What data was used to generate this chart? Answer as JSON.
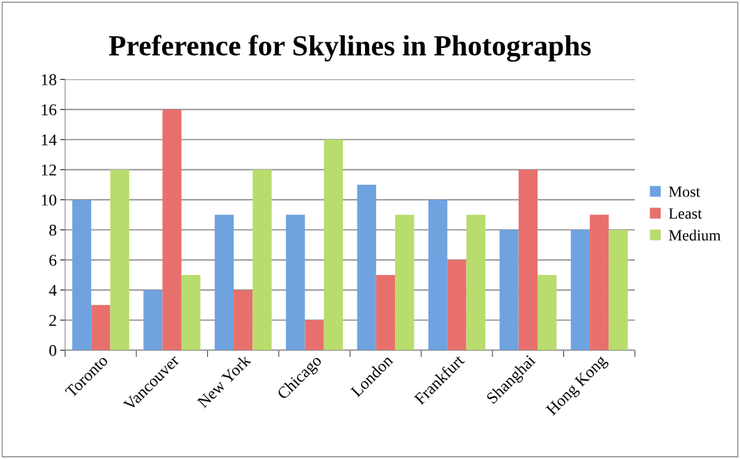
{
  "chart_data": {
    "type": "bar",
    "title": "Preference for Skylines in Photographs",
    "categories": [
      "Toronto",
      "Vancouver",
      "New York",
      "Chicago",
      "London",
      "Frankfurt",
      "Shanghai",
      "Hong Kong"
    ],
    "series": [
      {
        "name": "Most",
        "color": "#6fa3e0",
        "values": [
          10,
          4,
          9,
          9,
          11,
          10,
          8,
          8
        ]
      },
      {
        "name": "Least",
        "color": "#e8706c",
        "values": [
          3,
          16,
          4,
          2,
          5,
          6,
          12,
          9
        ]
      },
      {
        "name": "Medium",
        "color": "#b8dc6e",
        "values": [
          12,
          5,
          12,
          14,
          9,
          9,
          5,
          8
        ]
      }
    ],
    "ylim": [
      0,
      18
    ],
    "yticks": [
      0,
      2,
      4,
      6,
      8,
      10,
      12,
      14,
      16,
      18
    ],
    "grid": "y",
    "legend": "right"
  }
}
